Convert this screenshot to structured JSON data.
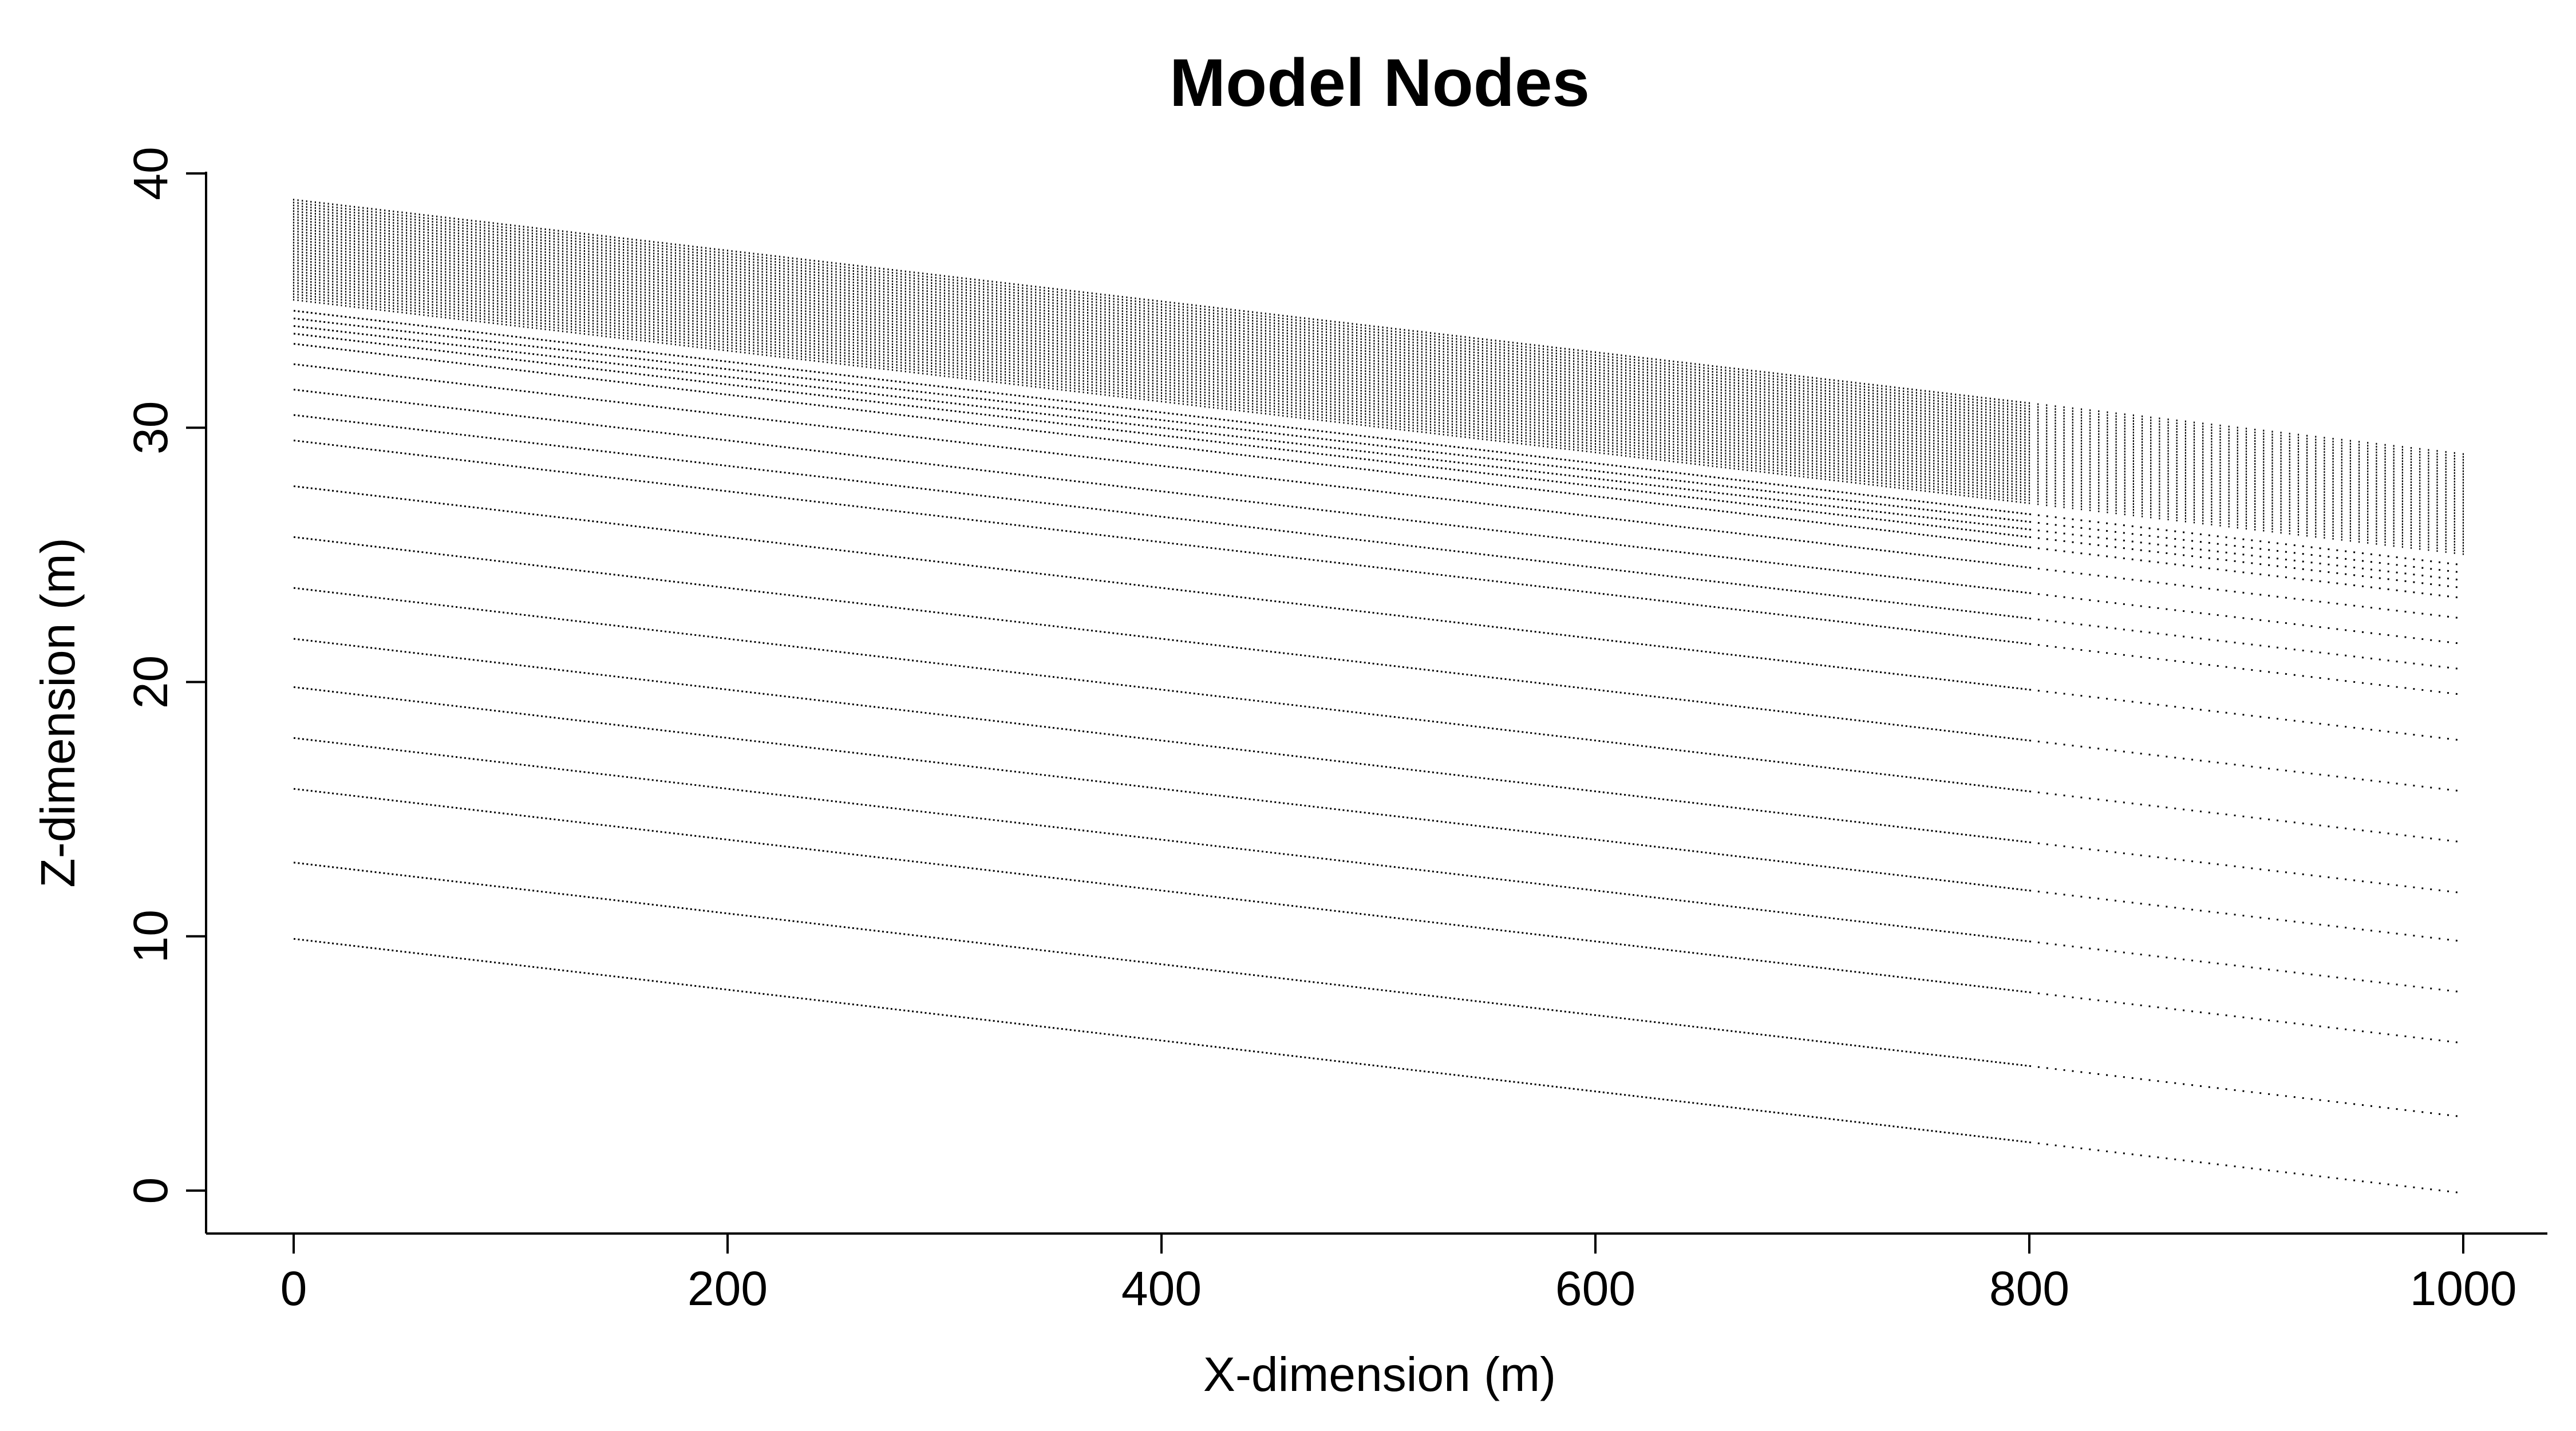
{
  "chart_data": {
    "type": "scatter",
    "title": "Model Nodes",
    "xlabel": "X-dimension (m)",
    "ylabel": "Z-dimension (m)",
    "xlim": [
      -40,
      1040
    ],
    "ylim": [
      -1.5,
      40.5
    ],
    "xticks": [
      0,
      200,
      400,
      600,
      800,
      1000
    ],
    "yticks": [
      0,
      10,
      20,
      30,
      40
    ],
    "grid": false,
    "legend": "none",
    "colors": {
      "points": "#000000",
      "axes": "#000000",
      "background": "#ffffff"
    },
    "series": [
      {
        "description_of_structure": "nodes along layer lines z = z0 - 0.01*x, x from 0 to 1000 m",
        "surface_z_at_x0": 39,
        "slope": -0.01,
        "dense_column_zone": {
          "z_top_at_x0": 39,
          "z_bottom_at_x0": 35,
          "x_dense_end": 800
        },
        "layer_z_at_x0": [
          34.6,
          34.3,
          34.0,
          33.7,
          33.3,
          32.5,
          31.5,
          30.5,
          29.5,
          27.7,
          25.7,
          23.7,
          21.7,
          19.8,
          17.8,
          15.8,
          12.9,
          9.9
        ],
        "x_spacing_dense": 2,
        "x_spacing_coarse": 4
      }
    ]
  }
}
